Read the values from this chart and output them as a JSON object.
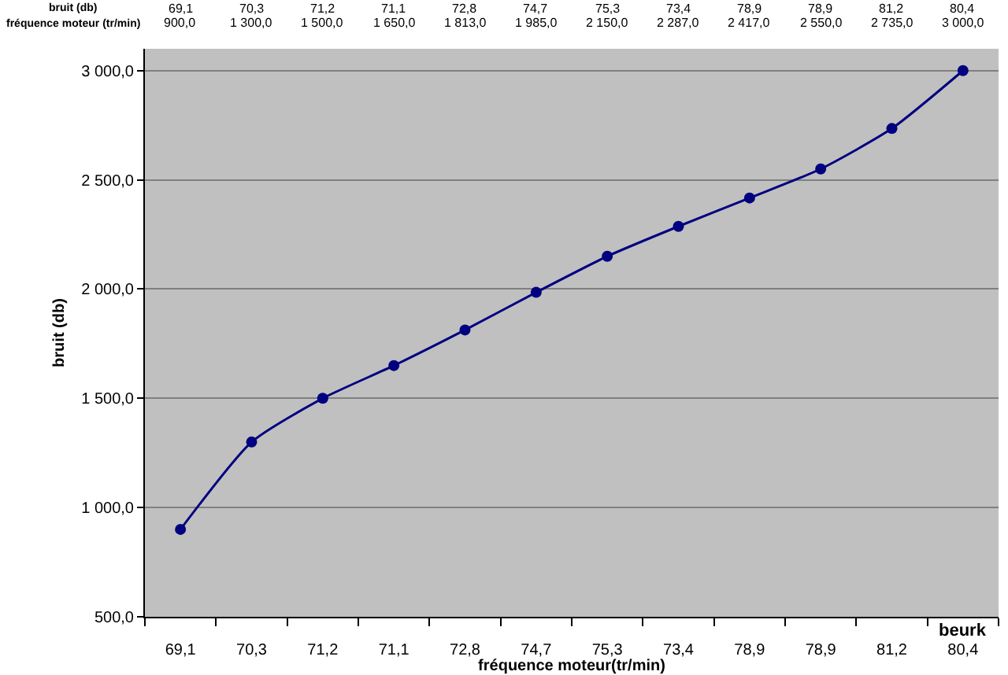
{
  "chart_data": {
    "type": "line",
    "xlabel": "fréquence moteur(tr/min)",
    "ylabel": "bruit (db)",
    "annotations": [
      "bruit (db)",
      "fréquence moteur (tr/min)",
      "beurk"
    ],
    "categories": [
      "69,1",
      "70,3",
      "71,2",
      "71,1",
      "72,8",
      "74,7",
      "75,3",
      "73,4",
      "78,9",
      "78,9",
      "81,2",
      "80,4"
    ],
    "series": [
      {
        "color": "#000080",
        "values": [
          900,
          1300,
          1500,
          1650,
          1813,
          1985,
          2150,
          2287,
          2417,
          2550,
          2735,
          3000
        ],
        "value_labels": [
          "900,0",
          "1 300,0",
          "1 500,0",
          "1 650,0",
          "1 813,0",
          "1 985,0",
          "2 150,0",
          "2 287,0",
          "2 417,0",
          "2 550,0",
          "2 735,0",
          "3 000,0"
        ]
      }
    ],
    "ylim": [
      500,
      3100
    ],
    "yticks": [
      {
        "value": 500,
        "label": "500,0"
      },
      {
        "value": 1000,
        "label": "1 000,0"
      },
      {
        "value": 1500,
        "label": "1 500,0"
      },
      {
        "value": 2000,
        "label": "2 000,0"
      },
      {
        "value": 2500,
        "label": "2 500,0"
      },
      {
        "value": 3000,
        "label": "3 000,0"
      }
    ],
    "grid": "y",
    "marker": "circle",
    "line_style": "solid"
  }
}
